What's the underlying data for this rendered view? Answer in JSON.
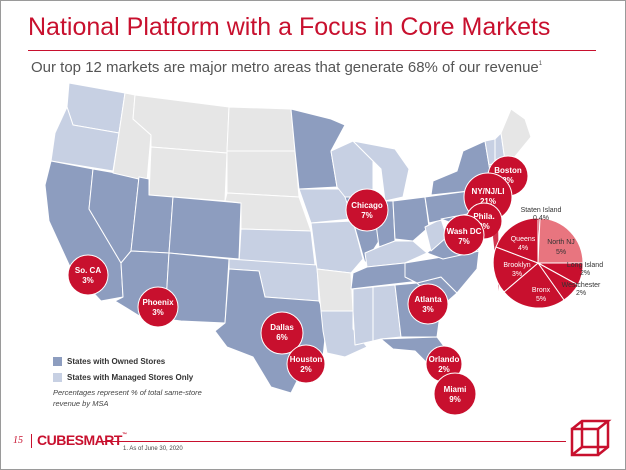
{
  "slide": {
    "title": "National Platform with a Focus in Core Markets",
    "subtitle": "Our top 12 markets are major metro areas that generate 68% of our revenue",
    "subtitle_ref": "1"
  },
  "markets": [
    {
      "name": "Boston",
      "pct": "2%"
    },
    {
      "name": "NY/NJ/LI",
      "pct": "21%"
    },
    {
      "name": "Chicago",
      "pct": "7%"
    },
    {
      "name": "Phila.",
      "pct": "3%"
    },
    {
      "name": "Wash DC",
      "pct": "7%"
    },
    {
      "name": "So. CA",
      "pct": "3%"
    },
    {
      "name": "Phoenix",
      "pct": "3%"
    },
    {
      "name": "Atlanta",
      "pct": "3%"
    },
    {
      "name": "Dallas",
      "pct": "6%"
    },
    {
      "name": "Houston",
      "pct": "2%"
    },
    {
      "name": "Orlando",
      "pct": "2%"
    },
    {
      "name": "Miami",
      "pct": "9%"
    }
  ],
  "ny_breakdown": [
    {
      "name": "Staten Island",
      "pct": "0.4%"
    },
    {
      "name": "North NJ",
      "pct": "5%"
    },
    {
      "name": "Long Island",
      "pct": "2%"
    },
    {
      "name": "Westchester",
      "pct": "2%"
    },
    {
      "name": "Bronx",
      "pct": "5%"
    },
    {
      "name": "Brooklyn",
      "pct": "3%"
    },
    {
      "name": "Queens",
      "pct": "4%"
    }
  ],
  "legend": {
    "owned": "States with Owned Stores",
    "managed": "States with Managed Stores Only",
    "note": "Percentages represent % of total same-store revenue by MSA"
  },
  "footer": {
    "page": "15",
    "brand": "CUBESMART",
    "brand_mark": "™",
    "footnote": "1.    As of June 30, 2020"
  },
  "colors": {
    "owned": "#8d9dbf",
    "managed": "#c7d0e3",
    "none": "#e6e6e6",
    "accent": "#c8102e"
  },
  "icons": {
    "logo": "cube-logo-icon"
  }
}
